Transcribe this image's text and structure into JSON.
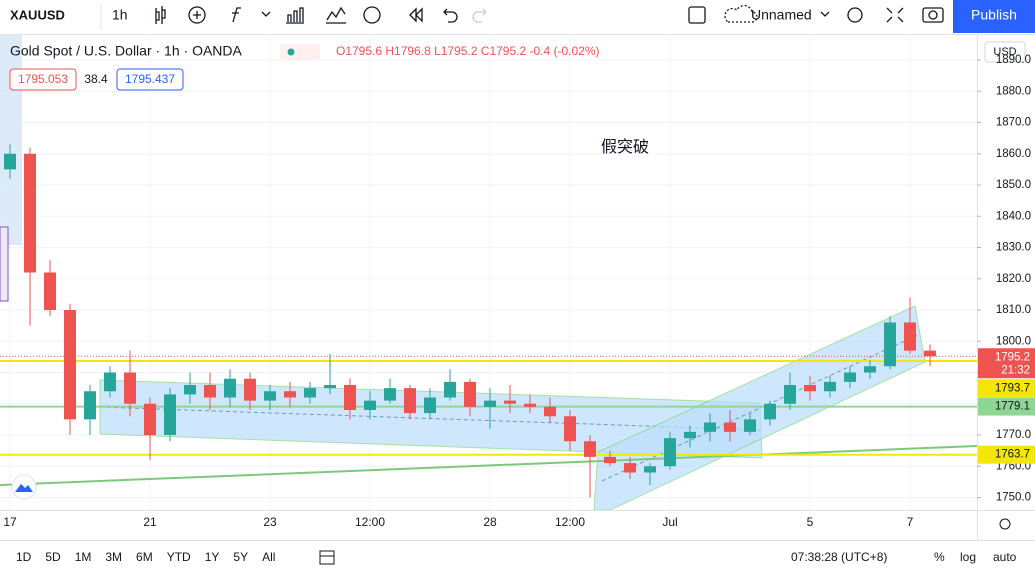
{
  "ui": {
    "symbol": "XAUUSD",
    "interval": "1h",
    "layout_name": "Unnamed",
    "publish": "Publish",
    "legend_title": "Gold Spot / U.S. Dollar · 1h · OANDA",
    "ohlc": "O1795.6 H1796.8 L1795.2 C1795.2 -0.4 (-0.02%)",
    "bid": "1795.053",
    "spread": "38.4",
    "ask": "1795.437",
    "currency": "USD",
    "annotation": "假突破",
    "ranges": [
      "1D",
      "5D",
      "1M",
      "3M",
      "6M",
      "YTD",
      "1Y",
      "5Y",
      "All"
    ],
    "clock": "07:38:28 (UTC+8)",
    "scale_options": [
      "%",
      "log",
      "auto"
    ]
  },
  "chart_data": {
    "type": "candlestick",
    "categories": [
      "17",
      null,
      null,
      null,
      null,
      null,
      null,
      "21",
      null,
      null,
      null,
      null,
      null,
      "23",
      null,
      null,
      null,
      null,
      "12:00",
      null,
      null,
      null,
      null,
      null,
      "28",
      null,
      null,
      null,
      "12:00",
      null,
      null,
      null,
      null,
      "Jul",
      null,
      null,
      null,
      null,
      null,
      null,
      "5",
      null,
      null,
      null,
      null,
      "7",
      null
    ],
    "open": [
      1855,
      1860,
      1822,
      1810,
      1775,
      1784,
      1790,
      1780,
      1770,
      1783,
      1786,
      1782,
      1788,
      1781,
      1784,
      1782,
      1785,
      1786,
      1778,
      1781,
      1785,
      1777,
      1782,
      1787,
      1779,
      1781,
      1780,
      1779,
      1776,
      1768,
      1763,
      1761,
      1758,
      1760,
      1769,
      1771,
      1774,
      1771,
      1775,
      1780,
      1786,
      1784,
      1787,
      1790,
      1792,
      1806,
      1797
    ],
    "high": [
      1863,
      1862,
      1826,
      1812,
      1786,
      1792,
      1797,
      1782,
      1785,
      1790,
      1790,
      1791,
      1790,
      1786,
      1787,
      1787,
      1796,
      1788,
      1784,
      1788,
      1786,
      1785,
      1791,
      1788,
      1785,
      1786,
      1783,
      1782,
      1778,
      1770,
      1765,
      1763,
      1761,
      1771,
      1773,
      1777,
      1778,
      1777,
      1781,
      1790,
      1789,
      1789,
      1792,
      1794,
      1808,
      1814,
      1799
    ],
    "low": [
      1852,
      1805,
      1808,
      1770,
      1770,
      1782,
      1776,
      1762,
      1768,
      1780,
      1778,
      1779,
      1778,
      1778,
      1779,
      1780,
      1783,
      1775,
      1775,
      1780,
      1775,
      1775,
      1781,
      1776,
      1772,
      1777,
      1777,
      1774,
      1765,
      1750,
      1760,
      1756,
      1754,
      1759,
      1766,
      1768,
      1768,
      1770,
      1773,
      1778,
      1781,
      1782,
      1785,
      1788,
      1791,
      1796,
      1792
    ],
    "close": [
      1860,
      1822,
      1810,
      1775,
      1784,
      1790,
      1780,
      1770,
      1783,
      1786,
      1782,
      1788,
      1781,
      1784,
      1782,
      1785,
      1786,
      1778,
      1781,
      1785,
      1777,
      1782,
      1787,
      1779,
      1781,
      1780,
      1779,
      1776,
      1768,
      1763,
      1761,
      1758,
      1760,
      1769,
      1771,
      1774,
      1771,
      1775,
      1780,
      1786,
      1784,
      1787,
      1790,
      1792,
      1806,
      1797,
      1795.2
    ],
    "up_color": "#26a69a",
    "down_color": "#ef5350",
    "ylim": [
      1746,
      1898
    ],
    "yticks": [
      {
        "value": 1750,
        "label": "1750.0"
      },
      {
        "value": 1760,
        "label": "1760.0"
      },
      {
        "value": 1770,
        "label": "1770.0"
      },
      {
        "value": 1780,
        "label": "1780.0"
      },
      {
        "value": 1790,
        "label": "1790.0"
      },
      {
        "value": 1800,
        "label": "1800.0"
      },
      {
        "value": 1810,
        "label": "1810.0"
      },
      {
        "value": 1820,
        "label": "1820.0"
      },
      {
        "value": 1830,
        "label": "1830.0"
      },
      {
        "value": 1840,
        "label": "1840.0"
      },
      {
        "value": 1850,
        "label": "1850.0"
      },
      {
        "value": 1860,
        "label": "1860.0"
      },
      {
        "value": 1870,
        "label": "1870.0"
      },
      {
        "value": 1880,
        "label": "1880.0"
      },
      {
        "value": 1890,
        "label": "1890.0"
      }
    ],
    "grid": true,
    "last_price": {
      "value": 1795.2,
      "countdown": "21:32",
      "color": "#ef5350"
    },
    "hlines": [
      {
        "value": 1793.7,
        "color": "#f5e60a"
      },
      {
        "value": 1779.1,
        "color": "#8fd694"
      },
      {
        "value": 1763.7,
        "color": "#f5e60a"
      }
    ]
  }
}
